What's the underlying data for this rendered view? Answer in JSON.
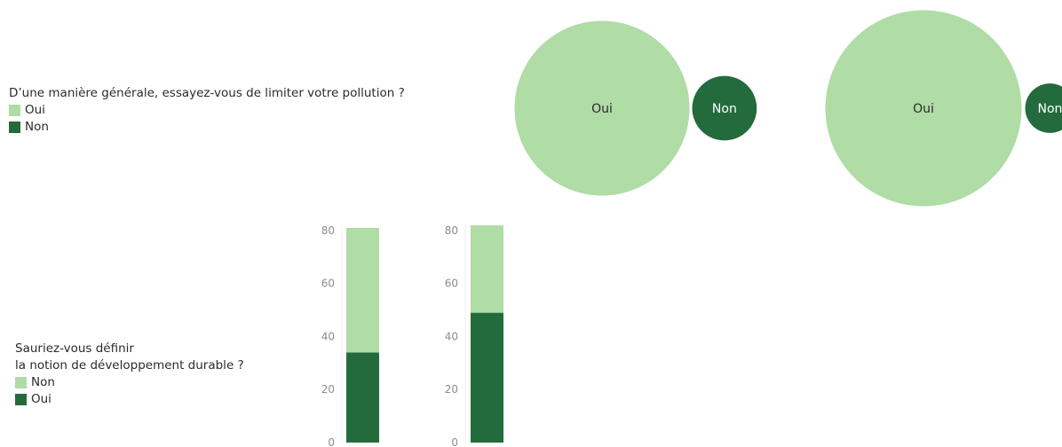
{
  "colors": {
    "light": "#b0dca6",
    "dark": "#236b3c"
  },
  "legend_top": {
    "title": "D’une manière générale, essayez-vous de limiter votre pollution ?",
    "items": [
      {
        "label": "Oui",
        "color": "#b0dca6"
      },
      {
        "label": "Non",
        "color": "#236b3c"
      }
    ]
  },
  "legend_bottom": {
    "title_line1": "Sauriez-vous définir",
    "title_line2": "la notion de développement durable ?",
    "items": [
      {
        "label": "Non",
        "color": "#b0dca6"
      },
      {
        "label": "Oui",
        "color": "#236b3c"
      }
    ]
  },
  "chart_data": [
    {
      "type": "bubble",
      "points": [
        {
          "label": "Oui",
          "value": 88,
          "color": "#b0dca6",
          "text_color": "#2b2b2b"
        },
        {
          "label": "Non",
          "value": 12,
          "color": "#236b3c",
          "text_color": "#ffffff"
        }
      ]
    },
    {
      "type": "bubble",
      "points": [
        {
          "label": "Oui",
          "value": 94,
          "color": "#b0dca6",
          "text_color": "#2b2b2b"
        },
        {
          "label": "Non",
          "value": 6,
          "color": "#236b3c",
          "text_color": "#ffffff"
        }
      ]
    },
    {
      "type": "bar",
      "stacked": true,
      "ylim": [
        0,
        82
      ],
      "yticks": [
        0,
        20,
        40,
        60,
        80
      ],
      "series": [
        {
          "name": "Oui",
          "color": "#236b3c",
          "values": [
            34
          ]
        },
        {
          "name": "Non",
          "color": "#b0dca6",
          "values": [
            47
          ]
        }
      ]
    },
    {
      "type": "bar",
      "stacked": true,
      "ylim": [
        0,
        82
      ],
      "yticks": [
        0,
        20,
        40,
        60,
        80
      ],
      "series": [
        {
          "name": "Oui",
          "color": "#236b3c",
          "values": [
            49
          ]
        },
        {
          "name": "Non",
          "color": "#b0dca6",
          "values": [
            33
          ]
        }
      ]
    }
  ]
}
